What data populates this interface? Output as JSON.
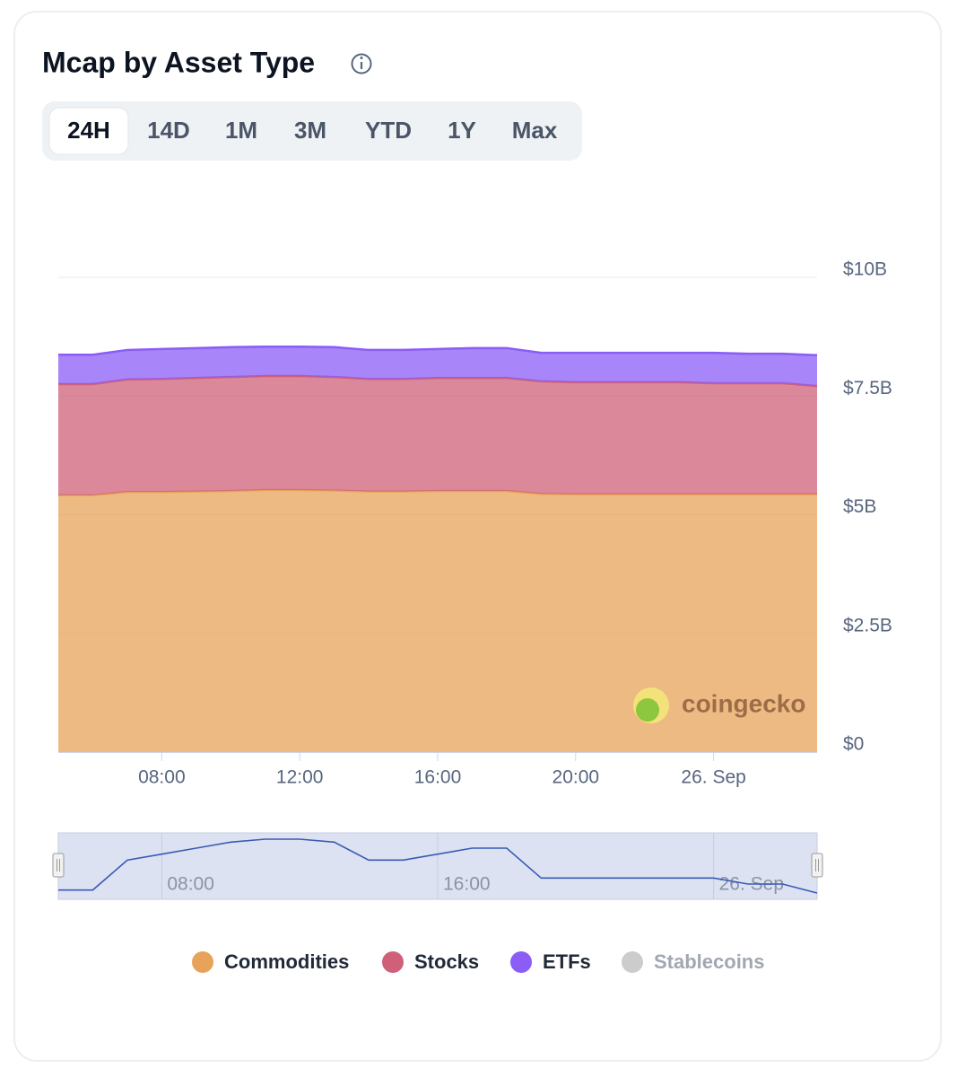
{
  "header": {
    "title": "Mcap by Asset Type"
  },
  "range_buttons": {
    "options": [
      "24H",
      "14D",
      "1M",
      "3M",
      "YTD",
      "1Y",
      "Max"
    ],
    "selected": "24H"
  },
  "chart_data": {
    "type": "stacked_area",
    "watermark": "coingecko",
    "x": [
      5,
      6,
      7,
      8,
      9,
      10,
      11,
      12,
      13,
      14,
      15,
      16,
      17,
      18,
      19,
      20,
      21,
      22,
      23,
      24,
      25,
      26,
      27
    ],
    "xlim": [
      5,
      27
    ],
    "xticks": [
      {
        "value": 8,
        "label": "08:00"
      },
      {
        "value": 12,
        "label": "12:00"
      },
      {
        "value": 16,
        "label": "16:00"
      },
      {
        "value": 20,
        "label": "20:00"
      },
      {
        "value": 24,
        "label": "26. Sep"
      }
    ],
    "ylim": [
      0,
      10
    ],
    "yticks": [
      {
        "value": 0,
        "label": "$0"
      },
      {
        "value": 2.5,
        "label": "$2.5B"
      },
      {
        "value": 5,
        "label": "$5B"
      },
      {
        "value": 7.5,
        "label": "$7.5B"
      },
      {
        "value": 10,
        "label": "$10B"
      }
    ],
    "grid": true,
    "series": [
      {
        "name": "Commodities",
        "color": "#e8a35a",
        "visible": true,
        "values": [
          5.41,
          5.41,
          5.48,
          5.48,
          5.49,
          5.5,
          5.52,
          5.52,
          5.51,
          5.49,
          5.49,
          5.5,
          5.5,
          5.5,
          5.44,
          5.43,
          5.43,
          5.43,
          5.43,
          5.43,
          5.43,
          5.43,
          5.43
        ]
      },
      {
        "name": "Stocks",
        "color": "#d0607a",
        "visible": true,
        "values": [
          2.34,
          2.34,
          2.37,
          2.38,
          2.39,
          2.4,
          2.4,
          2.4,
          2.39,
          2.37,
          2.37,
          2.38,
          2.38,
          2.38,
          2.37,
          2.36,
          2.36,
          2.36,
          2.36,
          2.34,
          2.34,
          2.34,
          2.28
        ]
      },
      {
        "name": "ETFs",
        "color": "#8b5cf6",
        "visible": true,
        "values": [
          0.62,
          0.62,
          0.62,
          0.63,
          0.63,
          0.63,
          0.62,
          0.62,
          0.63,
          0.61,
          0.61,
          0.61,
          0.63,
          0.63,
          0.6,
          0.62,
          0.62,
          0.62,
          0.62,
          0.64,
          0.62,
          0.62,
          0.65
        ]
      },
      {
        "name": "Stablecoins",
        "color": "#cccccc",
        "visible": false
      }
    ],
    "navigator": {
      "xticks": [
        {
          "value": 8,
          "label": "08:00"
        },
        {
          "value": 16,
          "label": "16:00"
        },
        {
          "value": 24,
          "label": "26. Sep"
        }
      ]
    }
  }
}
